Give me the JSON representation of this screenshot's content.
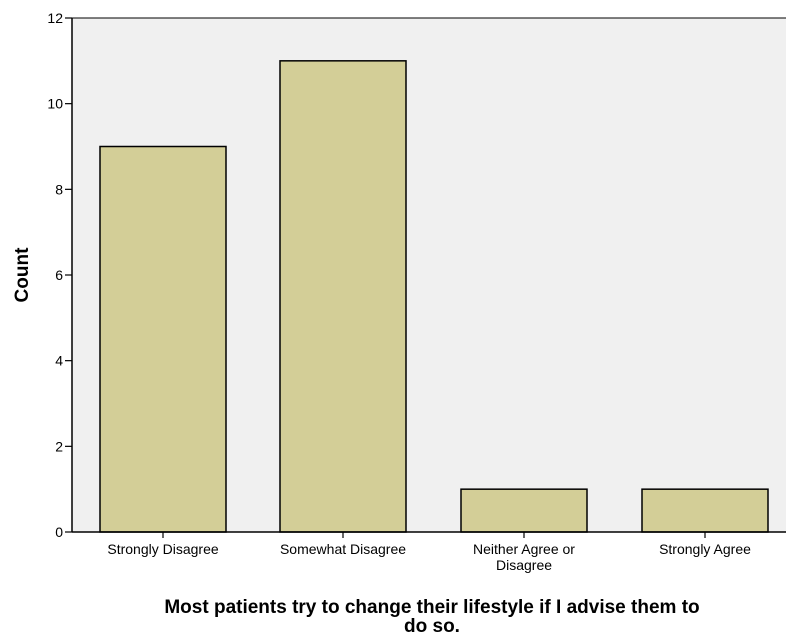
{
  "chart_data": {
    "type": "bar",
    "categories": [
      [
        "Strongly Disagree"
      ],
      [
        "Somewhat Disagree"
      ],
      [
        "Neither Agree or",
        "Disagree"
      ],
      [
        "Strongly Agree"
      ]
    ],
    "values": [
      9,
      11,
      1,
      1
    ],
    "xlabel": [
      "Most patients try to change their lifestyle if I advise them to",
      "do so."
    ],
    "ylabel": "Count",
    "ylim": [
      0,
      12
    ],
    "yticks": [
      0,
      2,
      4,
      6,
      8,
      10,
      12
    ],
    "grid": false,
    "colors": {
      "bar_fill": "#d3ce97",
      "bar_stroke": "#000000",
      "plot_background": "#f0f0f0",
      "axis": "#000000"
    }
  }
}
